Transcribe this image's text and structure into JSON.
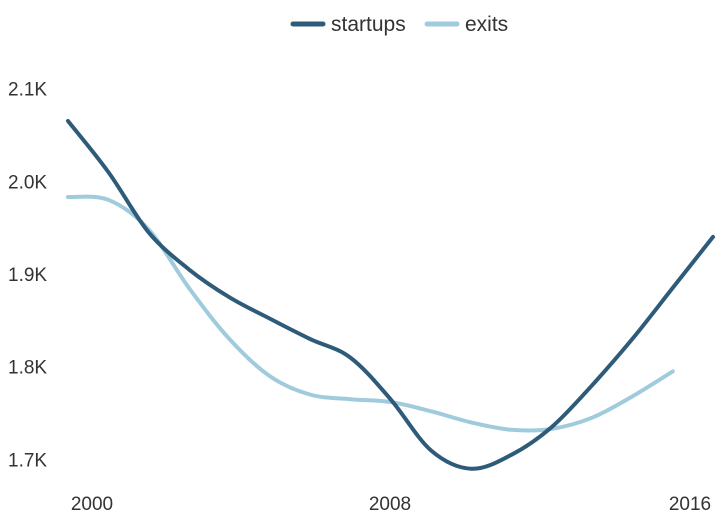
{
  "chart_data": {
    "type": "line",
    "title": "",
    "xlabel": "",
    "ylabel": "",
    "x_ticks": [
      "2000",
      "2008",
      "2016"
    ],
    "y_ticks": [
      "1.7K",
      "1.8K",
      "1.9K",
      "2.0K",
      "2.1K"
    ],
    "y_tick_values": [
      1700,
      1800,
      1900,
      2000,
      2100
    ],
    "xlim": [
      2000,
      2016
    ],
    "ylim": [
      1680,
      2120
    ],
    "grid": false,
    "legend": "top-center",
    "series": [
      {
        "name": "startups",
        "color": "#2e5b7a",
        "x": [
          2000,
          2001,
          2002,
          2003,
          2004,
          2005,
          2006,
          2007,
          2008,
          2009,
          2010,
          2011,
          2012,
          2013,
          2014,
          2015,
          2016
        ],
        "values": [
          2065,
          2010,
          1945,
          1905,
          1875,
          1852,
          1830,
          1810,
          1765,
          1710,
          1690,
          1705,
          1735,
          1780,
          1830,
          1885,
          1940
        ]
      },
      {
        "name": "exits",
        "color": "#9fcbdd",
        "x": [
          2000,
          2001,
          2002,
          2003,
          2004,
          2005,
          2006,
          2007,
          2008,
          2009,
          2010,
          2011,
          2012,
          2013,
          2014,
          2015
        ],
        "values": [
          1983,
          1980,
          1948,
          1885,
          1830,
          1790,
          1770,
          1765,
          1762,
          1752,
          1740,
          1732,
          1733,
          1745,
          1768,
          1795
        ]
      }
    ]
  }
}
